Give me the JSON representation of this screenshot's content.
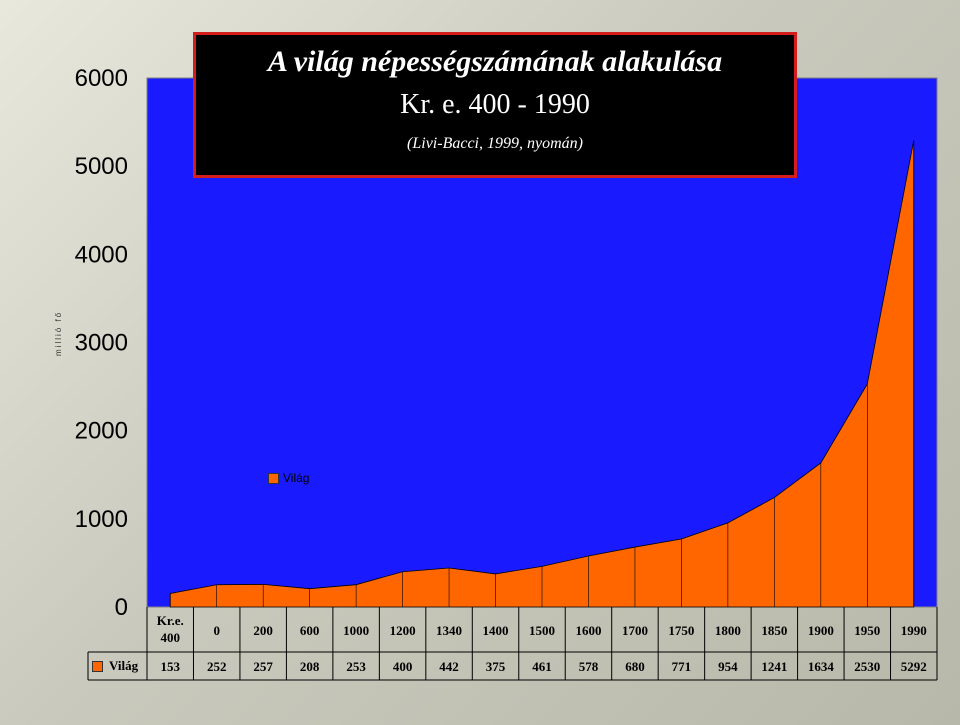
{
  "title": {
    "line1": "A világ népességszámának alakulása",
    "line2": "Kr. e. 400 - 1990",
    "line3": "(Livi-Bacci, 1999, nyomán)"
  },
  "colors": {
    "plot_background": "#1a1aff",
    "area_fill": "#ff6600",
    "title_background": "#000000",
    "title_border": "#d41e1e"
  },
  "chart_data": {
    "type": "area",
    "title": "A világ népességszámának alakulása",
    "subtitle": "Kr. e. 400 - 1990",
    "ylabel": "millió fő",
    "ylim": [
      0,
      6000
    ],
    "yticks": [
      0,
      1000,
      2000,
      3000,
      4000,
      5000,
      6000
    ],
    "grid": false,
    "legend": "inside-left",
    "categories": [
      "Kr.e. 400",
      "0",
      "200",
      "600",
      "1000",
      "1200",
      "1340",
      "1400",
      "1500",
      "1600",
      "1700",
      "1750",
      "1800",
      "1850",
      "1900",
      "1950",
      "1990"
    ],
    "series": [
      {
        "name": "Világ",
        "values": [
          153,
          252,
          257,
          208,
          253,
          400,
          442,
          375,
          461,
          578,
          680,
          771,
          954,
          1241,
          1634,
          2530,
          5292
        ]
      }
    ],
    "table": {
      "show": true
    }
  }
}
